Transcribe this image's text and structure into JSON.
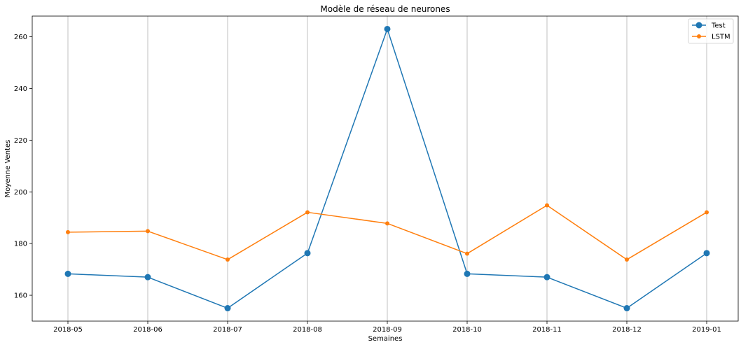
{
  "chart_data": {
    "type": "line",
    "title": "Modèle de réseau de neurones",
    "xlabel": "Semaines",
    "ylabel": "Moyenne Ventes",
    "categories": [
      "2018-05",
      "2018-06",
      "2018-07",
      "2018-08",
      "2018-09",
      "2018-10",
      "2018-11",
      "2018-12",
      "2019-01"
    ],
    "series": [
      {
        "name": "Test",
        "color": "#1f77b4",
        "marker": "large-circle",
        "values": [
          168.3,
          167.0,
          155.0,
          176.3,
          263.0,
          168.3,
          167.0,
          155.0,
          176.3
        ]
      },
      {
        "name": "LSTM",
        "color": "#ff7f0e",
        "marker": "small-circle",
        "values": [
          184.4,
          184.8,
          173.8,
          192.1,
          187.8,
          176.1,
          194.8,
          173.8,
          192.1
        ]
      }
    ],
    "ylim": [
      150,
      268
    ],
    "yticks": [
      160,
      180,
      200,
      220,
      240,
      260
    ],
    "grid": "vertical",
    "legend": "top-right"
  }
}
